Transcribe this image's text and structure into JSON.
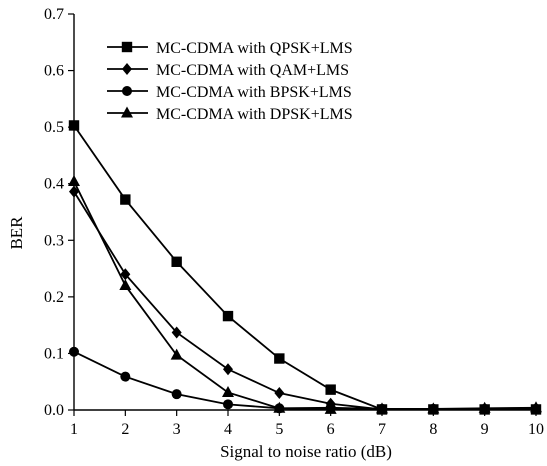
{
  "chart_data": {
    "type": "line",
    "title": "",
    "xlabel": "Signal to noise ratio (dB)",
    "ylabel": "BER",
    "x": [
      1,
      2,
      3,
      4,
      5,
      6,
      7,
      8,
      9,
      10
    ],
    "xlim": [
      1,
      10
    ],
    "ylim": [
      0,
      0.7
    ],
    "xticks": [
      "1",
      "2",
      "3",
      "4",
      "5",
      "6",
      "7",
      "8",
      "9",
      "10"
    ],
    "yticks": [
      "0.0",
      "0.1",
      "0.2",
      "0.3",
      "0.4",
      "0.5",
      "0.6",
      "0.7"
    ],
    "grid": false,
    "legend": "top",
    "series": [
      {
        "name": "MC-CDMA with QPSK+LMS",
        "marker": "square",
        "values": [
          0.503,
          0.372,
          0.262,
          0.166,
          0.091,
          0.036,
          0.001,
          0.001,
          0.001,
          0.001
        ]
      },
      {
        "name": "MC-CDMA with QAM+LMS",
        "marker": "diamond",
        "values": [
          0.386,
          0.24,
          0.137,
          0.072,
          0.03,
          0.011,
          0.001,
          0.001,
          0.001,
          0.001
        ]
      },
      {
        "name": "MC-CDMA with BPSK+LMS",
        "marker": "circle",
        "values": [
          0.103,
          0.059,
          0.028,
          0.01,
          0.003,
          0.004,
          0.002,
          0.002,
          0.002,
          0.002
        ]
      },
      {
        "name": "MC-CDMA with DPSK+LMS",
        "marker": "triangle",
        "values": [
          0.404,
          0.22,
          0.097,
          0.031,
          0.003,
          0.001,
          0.002,
          0.002,
          0.003,
          0.004
        ]
      }
    ]
  }
}
